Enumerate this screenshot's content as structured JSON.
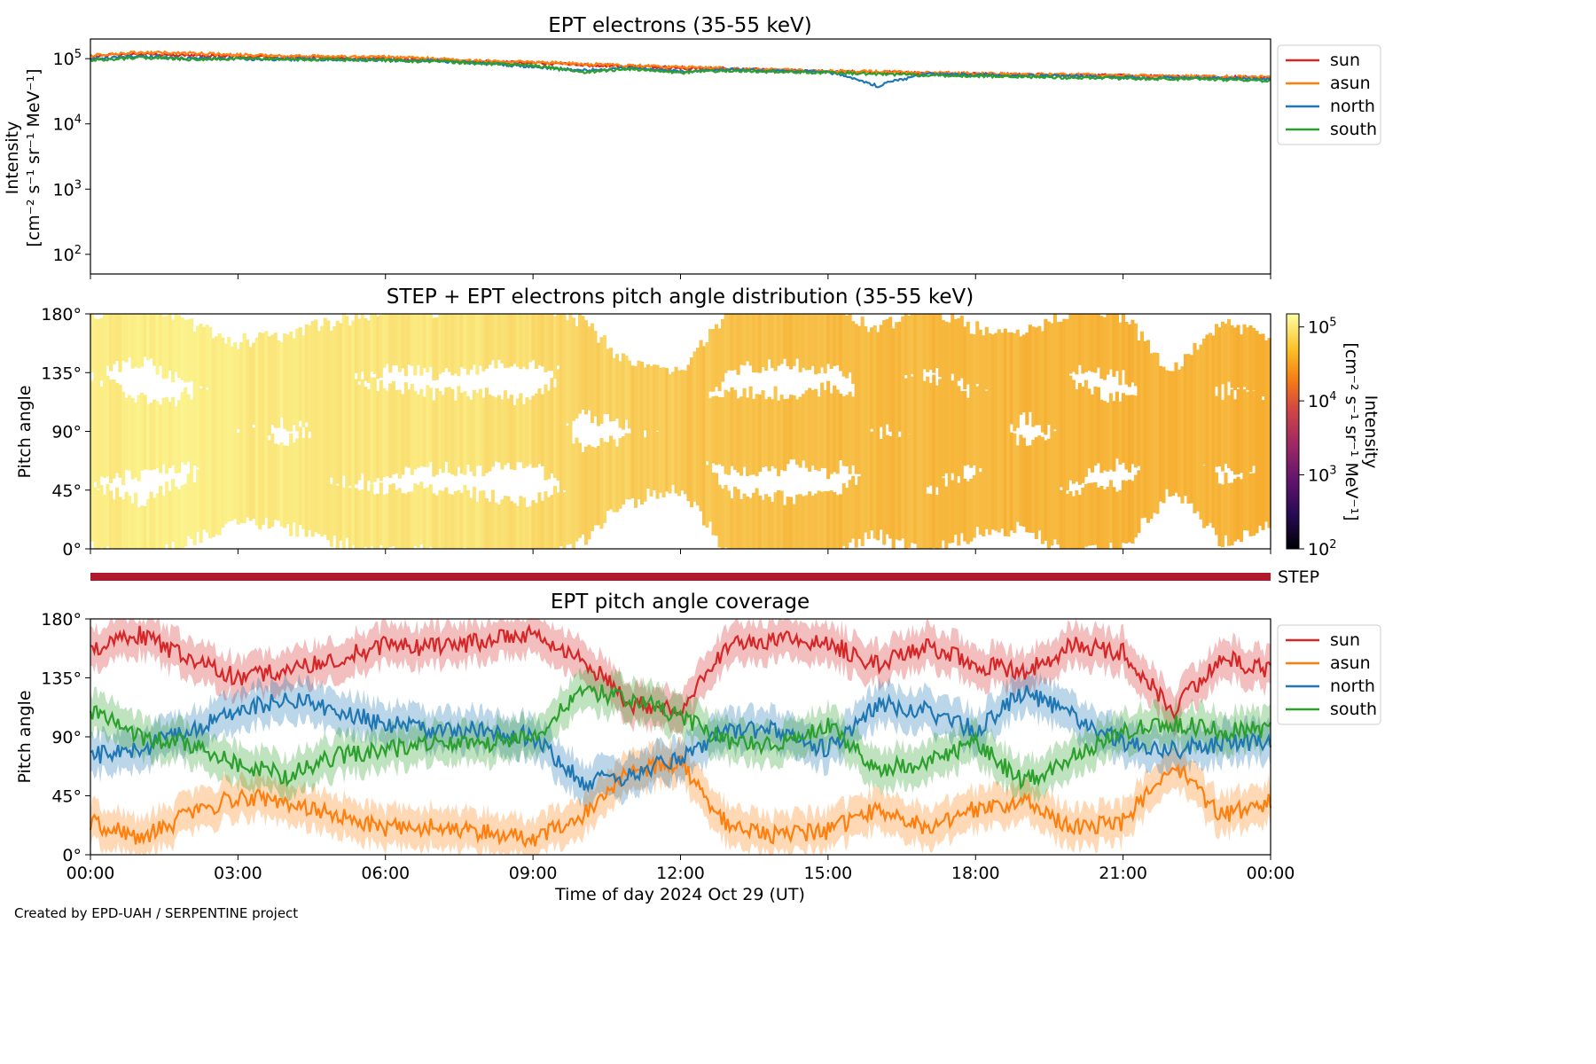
{
  "figure": {
    "xlabel": "Time of day 2024 Oct 29 (UT)",
    "credit": "Created by EPD-UAH / SERPENTINE project",
    "x_ticks": [
      "00:00",
      "03:00",
      "06:00",
      "09:00",
      "12:00",
      "15:00",
      "18:00",
      "21:00",
      "00:00"
    ],
    "x_range_hours": [
      0,
      24
    ]
  },
  "colors": {
    "sun": "#d62728",
    "asun": "#ff7f0e",
    "north": "#1f77b4",
    "south": "#2ca02c",
    "step_bar": "#b2182b"
  },
  "chart_data": [
    {
      "type": "line",
      "title": "EPT electrons (35-55 keV)",
      "ylabel_line1": "Intensity",
      "ylabel_line2": "[cm⁻² s⁻¹ sr⁻¹ MeV⁻¹]",
      "yscale": "log",
      "ylim": [
        50,
        200000
      ],
      "y_ticks": [
        {
          "value": 100,
          "base": "10",
          "exp": "2"
        },
        {
          "value": 1000,
          "base": "10",
          "exp": "3"
        },
        {
          "value": 10000,
          "base": "10",
          "exp": "4"
        },
        {
          "value": 100000,
          "base": "10",
          "exp": "5"
        }
      ],
      "legend_position": "outside-right-top",
      "x": [
        0,
        1,
        2,
        3,
        4,
        5,
        6,
        7,
        8,
        9,
        10,
        11,
        12,
        13,
        14,
        15,
        16,
        17,
        18,
        19,
        20,
        21,
        22,
        23,
        24
      ],
      "series": [
        {
          "name": "sun",
          "color_key": "sun",
          "values": [
            110000,
            118000,
            112000,
            108000,
            104000,
            102000,
            100000,
            96000,
            90000,
            86000,
            80000,
            76000,
            72000,
            70000,
            67000,
            64000,
            62000,
            60000,
            58000,
            57000,
            56000,
            55000,
            53000,
            52000,
            51000
          ]
        },
        {
          "name": "asun",
          "color_key": "asun",
          "values": [
            112000,
            125000,
            122000,
            115000,
            110000,
            108000,
            106000,
            100000,
            92000,
            88000,
            83000,
            78000,
            74000,
            71000,
            68000,
            65000,
            63000,
            61000,
            59000,
            58000,
            57000,
            55000,
            54000,
            53000,
            52000
          ]
        },
        {
          "name": "north",
          "color_key": "north",
          "values": [
            100000,
            108000,
            100000,
            100000,
            98000,
            98000,
            95000,
            92000,
            85000,
            75000,
            66000,
            72000,
            64000,
            68000,
            65000,
            62000,
            38000,
            58000,
            56000,
            55000,
            54000,
            52000,
            51000,
            50000,
            48000
          ]
        },
        {
          "name": "south",
          "color_key": "south",
          "values": [
            95000,
            104000,
            98000,
            100000,
            97000,
            97000,
            94000,
            91000,
            84000,
            78000,
            62000,
            70000,
            61000,
            66000,
            63000,
            61000,
            58000,
            56000,
            54000,
            53000,
            51000,
            50000,
            49000,
            48000,
            46000
          ]
        }
      ]
    },
    {
      "type": "heatmap",
      "title": "STEP + EPT electrons pitch angle distribution (35-55 keV)",
      "ylabel": "Pitch angle",
      "ylim": [
        0,
        180
      ],
      "y_ticks": [
        "0°",
        "45°",
        "90°",
        "135°",
        "180°"
      ],
      "colorbar": {
        "label_line1": "Intensity",
        "label_line2": "[cm⁻² s⁻¹ sr⁻¹ MeV⁻¹]",
        "scale": "log",
        "range": [
          100,
          150000
        ],
        "ticks": [
          {
            "value": 100,
            "base": "10",
            "exp": "2"
          },
          {
            "value": 1000,
            "base": "10",
            "exp": "3"
          },
          {
            "value": 10000,
            "base": "10",
            "exp": "4"
          },
          {
            "value": 100000,
            "base": "10",
            "exp": "5"
          }
        ]
      },
      "intensity_by_hour": [
        110000,
        115000,
        110000,
        105000,
        100000,
        98000,
        95000,
        92000,
        80000,
        70000,
        60000,
        50000,
        45000,
        40000,
        38000,
        36000,
        35000,
        34000,
        33000,
        32000,
        31000,
        30000,
        30000,
        30000
      ]
    },
    {
      "type": "bar",
      "label": "STEP",
      "coverage_hours": [
        0,
        24
      ]
    },
    {
      "type": "line",
      "title": "EPT pitch angle coverage",
      "ylabel": "Pitch angle",
      "ylim": [
        0,
        180
      ],
      "y_ticks": [
        "0°",
        "45°",
        "90°",
        "135°",
        "180°"
      ],
      "legend_position": "outside-right-top",
      "x": [
        0,
        1,
        2,
        3,
        4,
        5,
        6,
        7,
        8,
        9,
        10,
        11,
        12,
        13,
        14,
        15,
        16,
        17,
        18,
        19,
        20,
        21,
        22,
        23,
        24
      ],
      "series": [
        {
          "name": "sun",
          "color_key": "sun",
          "values": [
            155,
            168,
            150,
            135,
            140,
            150,
            160,
            158,
            163,
            168,
            150,
            115,
            110,
            160,
            165,
            162,
            145,
            160,
            145,
            140,
            160,
            155,
            110,
            150,
            140
          ]
        },
        {
          "name": "asun",
          "color_key": "asun",
          "values": [
            25,
            12,
            30,
            45,
            40,
            30,
            20,
            22,
            17,
            12,
            30,
            65,
            70,
            20,
            15,
            18,
            35,
            20,
            35,
            40,
            20,
            25,
            70,
            30,
            40
          ]
        },
        {
          "name": "north",
          "color_key": "north",
          "values": [
            75,
            80,
            95,
            110,
            120,
            110,
            100,
            95,
            95,
            90,
            55,
            60,
            75,
            95,
            95,
            80,
            115,
            110,
            95,
            125,
            105,
            85,
            80,
            85,
            85
          ]
        },
        {
          "name": "south",
          "color_key": "south",
          "values": [
            110,
            90,
            85,
            70,
            60,
            75,
            80,
            85,
            85,
            90,
            125,
            120,
            105,
            85,
            85,
            100,
            65,
            70,
            85,
            55,
            75,
            95,
            100,
            95,
            95
          ]
        }
      ]
    }
  ]
}
